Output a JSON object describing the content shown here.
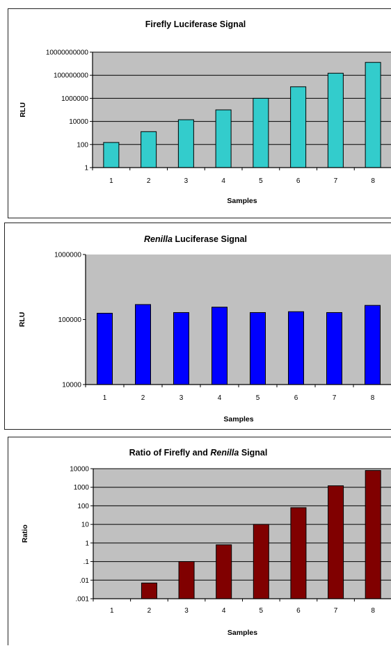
{
  "colors": {
    "plot_bg": "#c0c0c0",
    "grid": "#000000",
    "bar_outline": "#000000"
  },
  "chart_data": [
    {
      "type": "bar",
      "title": "Firefly Luciferase Signal",
      "title_parts": [],
      "xlabel": "Samples",
      "ylabel": "RLU",
      "yscale": "log",
      "ylim": [
        1,
        10000000000
      ],
      "yticks": [
        1,
        100,
        10000,
        1000000,
        100000000,
        10000000000
      ],
      "ytick_labels": [
        "1",
        "100",
        "10000",
        "1000000",
        "100000000",
        "10000000000"
      ],
      "categories": [
        "1",
        "2",
        "3",
        "4",
        "5",
        "6",
        "7",
        "8"
      ],
      "values": [
        150,
        1300,
        14000,
        100000,
        1000000,
        10000000,
        150000000,
        1300000000
      ],
      "bar_color": "#33cccc",
      "grid": true,
      "legend": "none"
    },
    {
      "type": "bar",
      "title": "",
      "title_parts": [
        {
          "text": "Renilla",
          "italic": true
        },
        {
          "text": " Luciferase Signal",
          "italic": false
        }
      ],
      "xlabel": "Samples",
      "ylabel": "RLU",
      "yscale": "log",
      "ylim": [
        10000,
        1000000
      ],
      "yticks": [
        10000,
        100000,
        1000000
      ],
      "ytick_labels": [
        "10000",
        "100000",
        "1000000"
      ],
      "categories": [
        "1",
        "2",
        "3",
        "4",
        "5",
        "6",
        "7",
        "8"
      ],
      "values": [
        125000,
        170000,
        128000,
        155000,
        128000,
        132000,
        128000,
        165000
      ],
      "bar_color": "#0000ff",
      "grid": false,
      "legend": "none"
    },
    {
      "type": "bar",
      "title": "",
      "title_parts": [
        {
          "text": "Ratio of Firefly and ",
          "italic": false
        },
        {
          "text": "Renilla",
          "italic": true
        },
        {
          "text": " Signal",
          "italic": false
        }
      ],
      "xlabel": "Samples",
      "ylabel": "Ratio",
      "yscale": "log",
      "ylim": [
        0.001,
        10000
      ],
      "yticks": [
        0.001,
        0.01,
        0.1,
        1,
        10,
        100,
        1000,
        10000
      ],
      "ytick_labels": [
        ".001",
        ".01",
        ".1",
        "1",
        "10",
        "100",
        "1000",
        "10000"
      ],
      "categories": [
        "1",
        "2",
        "3",
        "4",
        "5",
        "6",
        "7",
        "8"
      ],
      "values": [
        0.001,
        0.007,
        0.1,
        0.8,
        10,
        80,
        1200,
        8000
      ],
      "bar_color": "#800000",
      "grid": true,
      "legend": "none"
    }
  ]
}
